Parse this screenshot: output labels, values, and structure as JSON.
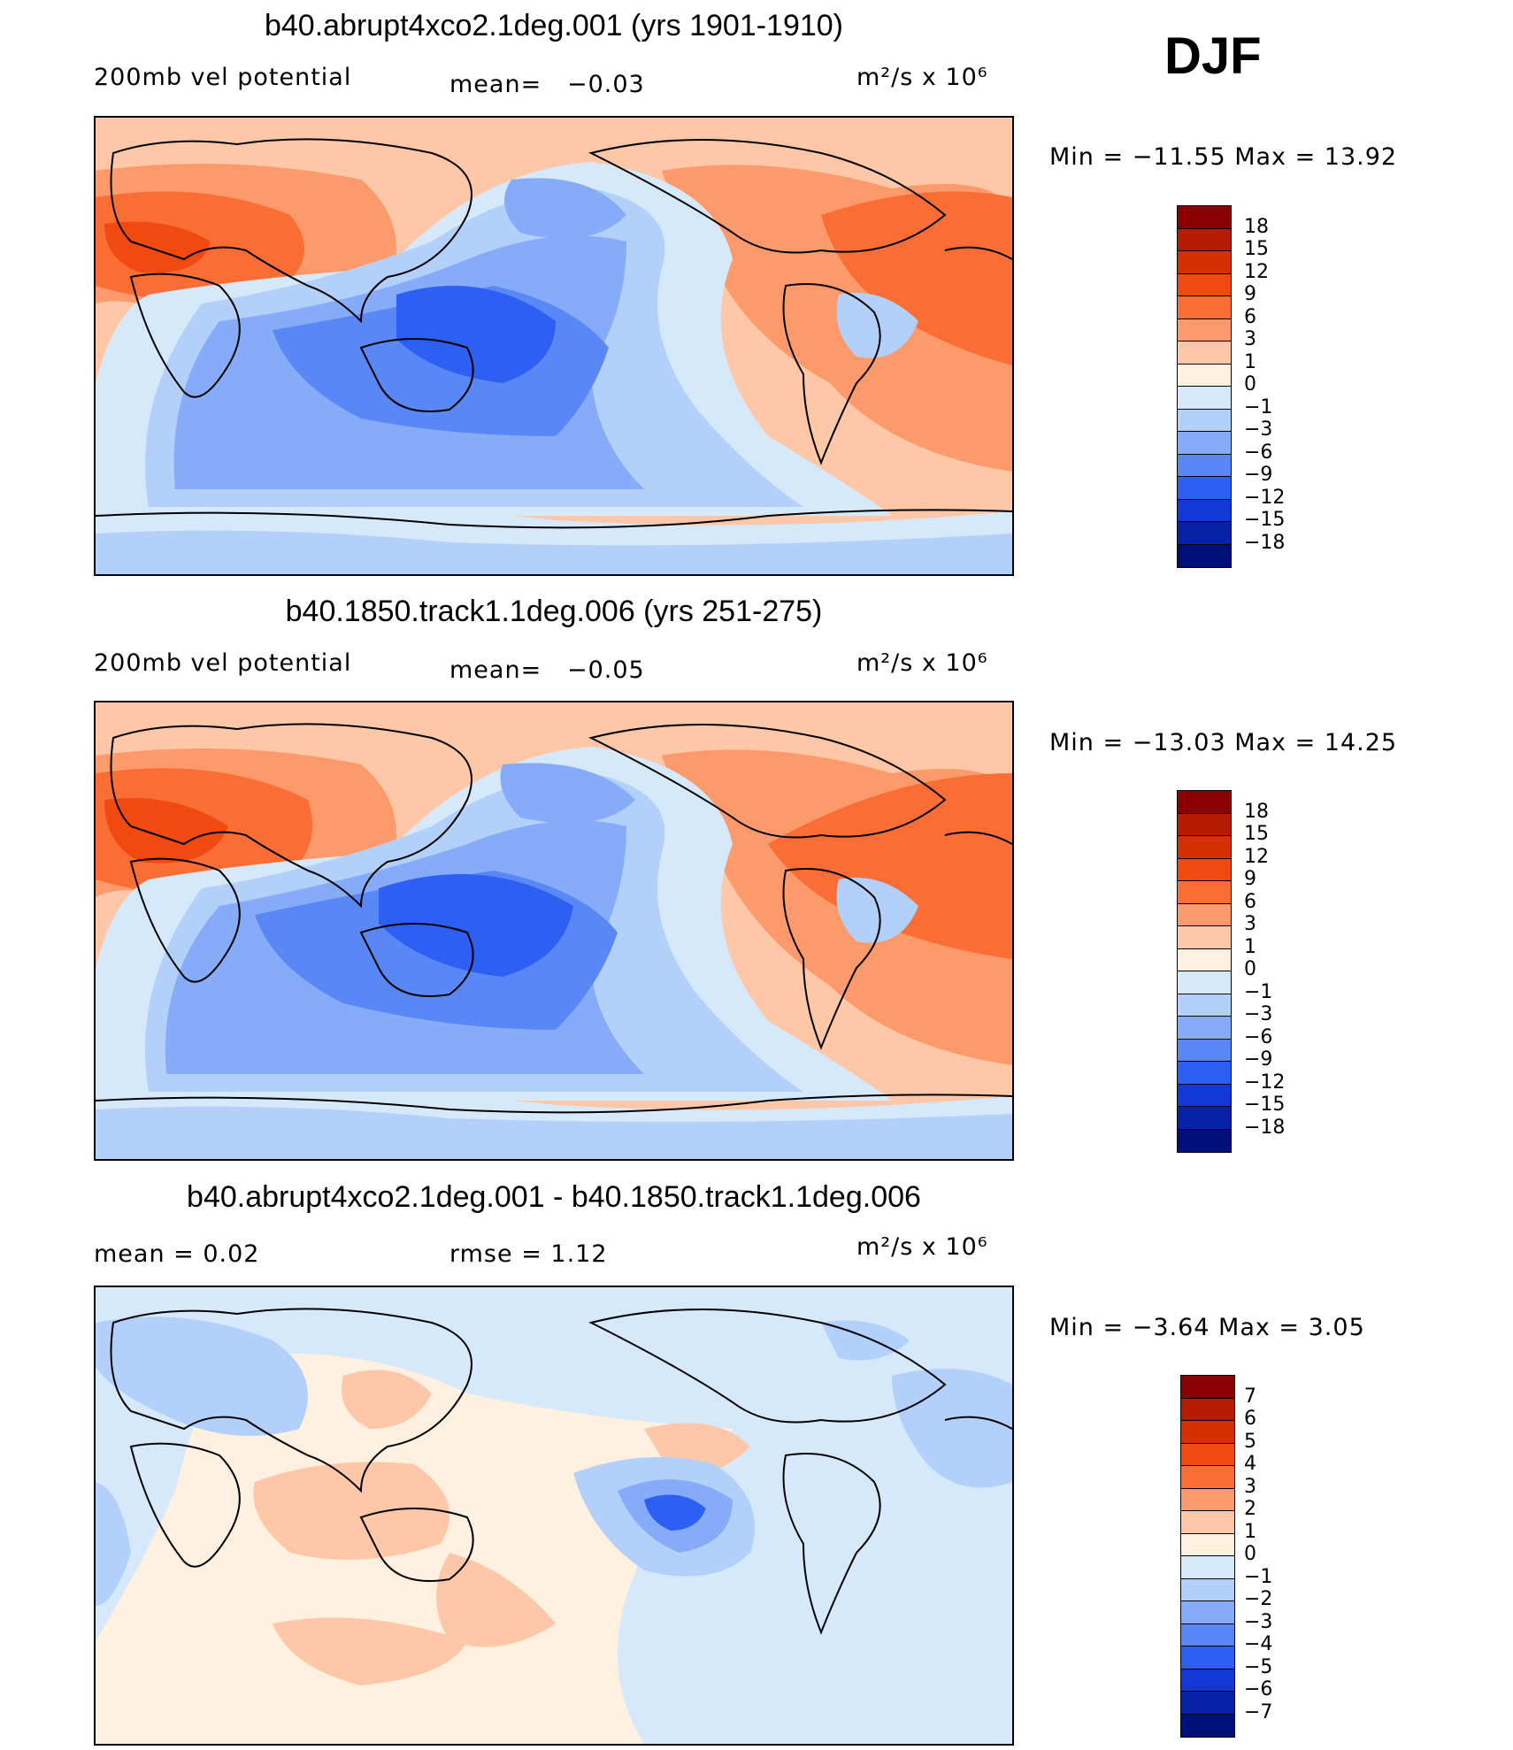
{
  "season": "DJF",
  "panels": [
    {
      "title": "b40.abrupt4xco2.1deg.001 (yrs 1901-1910)",
      "left_label": "200mb vel potential",
      "mean_label": "mean=",
      "mean_value": "−0.03",
      "units": "m²/s x 10⁶",
      "minmax_label": "Min  =  −11.55  Max  =    13.92",
      "mean": -0.03,
      "min": -11.55,
      "max": 13.92
    },
    {
      "title": "b40.1850.track1.1deg.006 (yrs 251-275)",
      "left_label": "200mb vel potential",
      "mean_label": "mean=",
      "mean_value": "−0.05",
      "units": "m²/s x 10⁶",
      "minmax_label": "Min  =  −13.03  Max  =    14.25",
      "mean": -0.05,
      "min": -13.03,
      "max": 14.25
    },
    {
      "title": "b40.abrupt4xco2.1deg.001 - b40.1850.track1.1deg.006",
      "left_label": "mean  =     0.02",
      "rmse_label": "rmse  =     1.12",
      "units": "m²/s x 10⁶",
      "minmax_label": "Min  =     −3.64  Max  =      3.05",
      "mean": 0.02,
      "rmse": 1.12,
      "min": -3.64,
      "max": 3.05
    }
  ],
  "colorbar_full": {
    "labels": [
      "18",
      "15",
      "12",
      "9",
      "6",
      "3",
      "1",
      "0",
      "−1",
      "−3",
      "−6",
      "−9",
      "−12",
      "−15",
      "−18"
    ],
    "colors": [
      "#8b0000",
      "#b51c00",
      "#d63000",
      "#f04a10",
      "#fa6e36",
      "#fc9a6b",
      "#fdc7a8",
      "#fff0e0",
      "#d6e9fb",
      "#b3d0fb",
      "#86acf9",
      "#5a87f6",
      "#2d5ff3",
      "#1438d8",
      "#0623a8",
      "#00107a"
    ]
  },
  "colorbar_diff": {
    "labels": [
      "7",
      "6",
      "5",
      "4",
      "3",
      "2",
      "1",
      "0",
      "−1",
      "−2",
      "−3",
      "−4",
      "−5",
      "−6",
      "−7"
    ],
    "colors": [
      "#8b0000",
      "#b51c00",
      "#d63000",
      "#f04a10",
      "#fa6e36",
      "#fc9a6b",
      "#fdc7a8",
      "#fff0e0",
      "#d6e9fb",
      "#b3d0fb",
      "#86acf9",
      "#5a87f6",
      "#2d5ff3",
      "#1438d8",
      "#0623a8",
      "#00107a"
    ]
  },
  "chart_data": [
    {
      "type": "heatmap",
      "title": "b40.abrupt4xco2.1deg.001 (yrs 1901-1910)",
      "variable": "200mb vel potential",
      "units": "m^2/s x 10^6",
      "season": "DJF",
      "mean": -0.03,
      "min": -11.55,
      "max": 13.92,
      "levels": [
        -18,
        -15,
        -12,
        -9,
        -6,
        -3,
        -1,
        0,
        1,
        3,
        6,
        9,
        12,
        15,
        18
      ]
    },
    {
      "type": "heatmap",
      "title": "b40.1850.track1.1deg.006 (yrs 251-275)",
      "variable": "200mb vel potential",
      "units": "m^2/s x 10^6",
      "season": "DJF",
      "mean": -0.05,
      "min": -13.03,
      "max": 14.25,
      "levels": [
        -18,
        -15,
        -12,
        -9,
        -6,
        -3,
        -1,
        0,
        1,
        3,
        6,
        9,
        12,
        15,
        18
      ]
    },
    {
      "type": "heatmap",
      "title": "b40.abrupt4xco2.1deg.001 - b40.1850.track1.1deg.006",
      "units": "m^2/s x 10^6",
      "season": "DJF",
      "mean": 0.02,
      "rmse": 1.12,
      "min": -3.64,
      "max": 3.05,
      "levels": [
        -7,
        -6,
        -5,
        -4,
        -3,
        -2,
        -1,
        0,
        1,
        2,
        3,
        4,
        5,
        6,
        7
      ]
    }
  ]
}
